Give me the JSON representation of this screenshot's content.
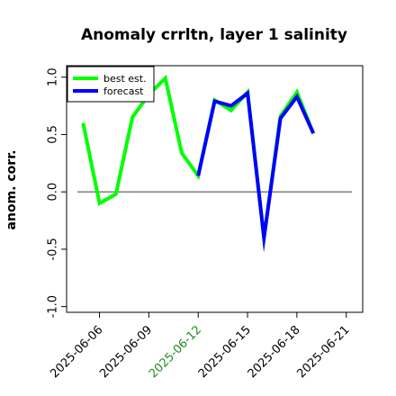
{
  "chart_data": {
    "type": "line",
    "title": "Anomaly crrltn, layer 1 salinity",
    "ylabel": "anom. corr.",
    "xlabel": "",
    "ylim": [
      -1.05,
      1.1
    ],
    "xlim": [
      "2025-06-04",
      "2025-06-22"
    ],
    "yticks": [
      -1.0,
      -0.5,
      0.0,
      0.5,
      1.0
    ],
    "ytick_labels": [
      "-1.0",
      "-0.5",
      "0.0",
      "0.5",
      "1.0"
    ],
    "xticks": [
      "2025-06-06",
      "2025-06-09",
      "2025-06-12",
      "2025-06-15",
      "2025-06-18",
      "2025-06-21"
    ],
    "highlight_tick": "2025-06-12",
    "reference_line": 0.0,
    "legend_position": "top-left",
    "colors": {
      "best_est": "#00ff00",
      "forecast": "#0000ff",
      "highlight_tick": "#228b22",
      "reference": "#555555"
    },
    "series": [
      {
        "name": "best est.",
        "color": "#00ff00",
        "x": [
          "2025-06-05",
          "2025-06-06",
          "2025-06-07",
          "2025-06-08",
          "2025-06-09",
          "2025-06-10",
          "2025-06-11",
          "2025-06-12",
          "2025-06-13",
          "2025-06-14",
          "2025-06-15",
          "2025-06-16",
          "2025-06-17",
          "2025-06-18",
          "2025-06-19"
        ],
        "values": [
          0.6,
          -0.1,
          -0.02,
          0.65,
          0.85,
          0.99,
          0.34,
          0.14,
          0.8,
          0.71,
          0.87,
          -0.4,
          0.66,
          0.87,
          0.51
        ]
      },
      {
        "name": "forecast",
        "color": "#0000ff",
        "x": [
          "2025-06-12",
          "2025-06-13",
          "2025-06-14",
          "2025-06-15",
          "2025-06-16",
          "2025-06-17",
          "2025-06-18",
          "2025-06-19"
        ],
        "values": [
          0.14,
          0.79,
          0.75,
          0.86,
          -0.4,
          0.64,
          0.83,
          0.51
        ]
      }
    ]
  }
}
